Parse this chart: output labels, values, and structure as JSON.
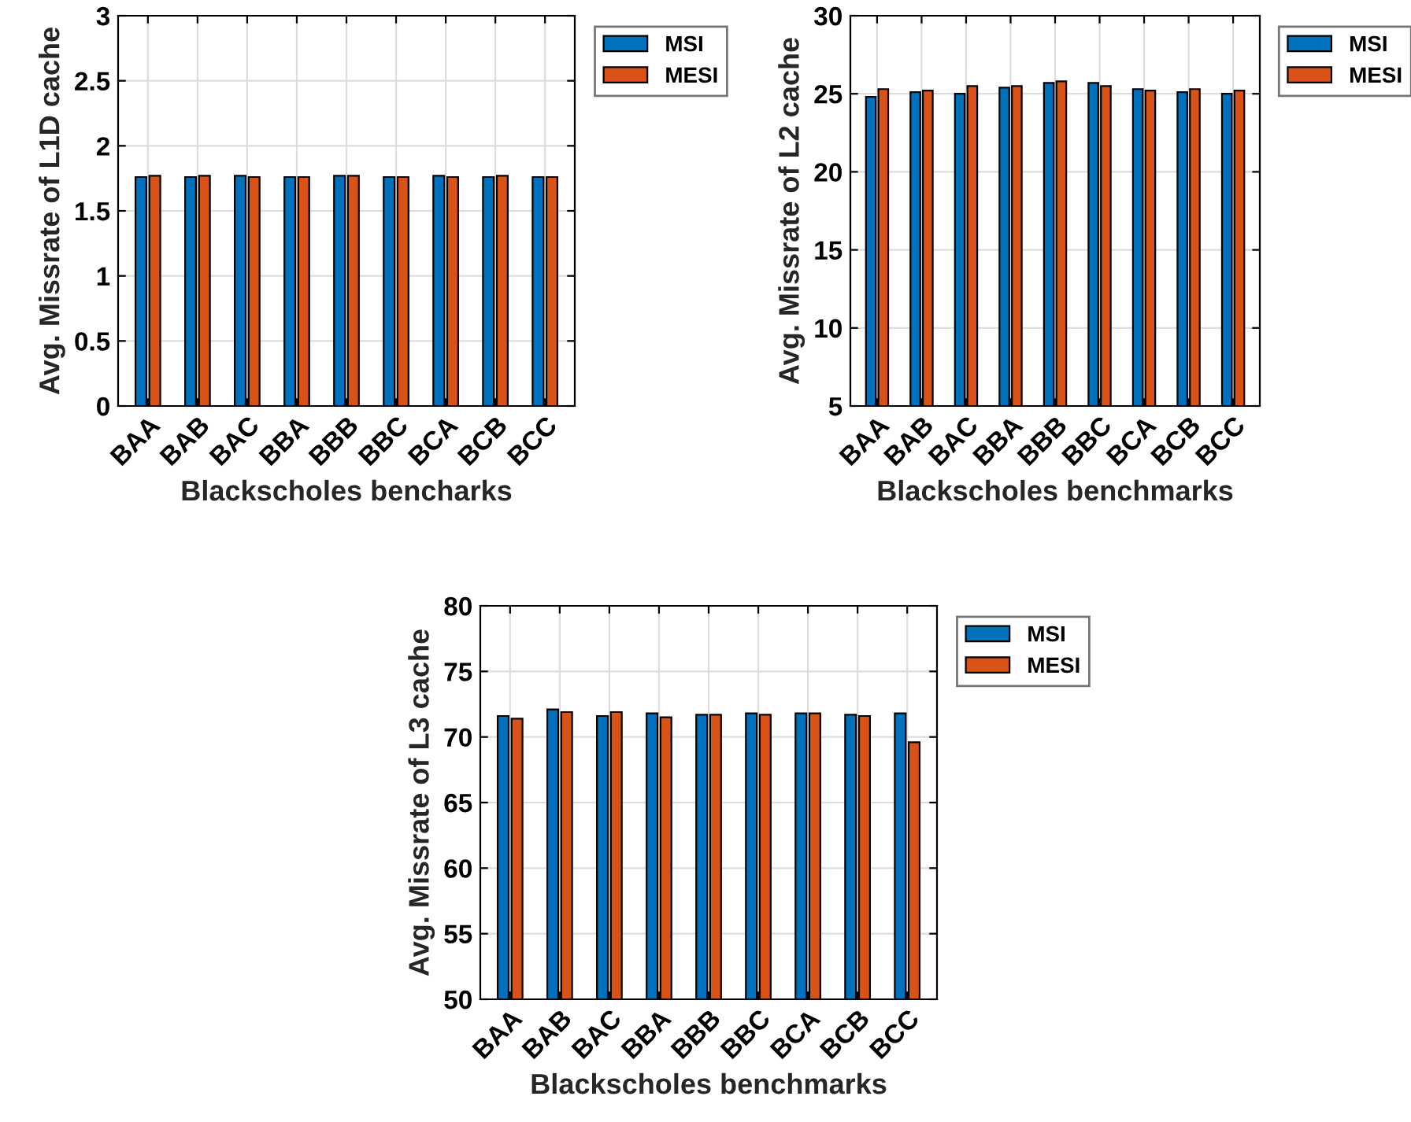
{
  "chart_data": [
    {
      "type": "bar",
      "categories": [
        "BAA",
        "BAB",
        "BAC",
        "BBA",
        "BBB",
        "BBC",
        "BCA",
        "BCB",
        "BCC"
      ],
      "xlabel": "Blackscholes bencharks",
      "ylabel": "Avg. Missrate of L1D cache",
      "ylim": [
        0,
        3
      ],
      "yticks": [
        0,
        0.5,
        1,
        1.5,
        2,
        2.5,
        3
      ],
      "grid": true,
      "legend": "top right",
      "series": [
        {
          "name": "MSI",
          "color": "#0072bd",
          "values": [
            1.76,
            1.76,
            1.77,
            1.76,
            1.77,
            1.76,
            1.77,
            1.76,
            1.76
          ]
        },
        {
          "name": "MESI",
          "color": "#d95319",
          "values": [
            1.77,
            1.77,
            1.76,
            1.76,
            1.77,
            1.76,
            1.76,
            1.77,
            1.76
          ]
        }
      ]
    },
    {
      "type": "bar",
      "categories": [
        "BAA",
        "BAB",
        "BAC",
        "BBA",
        "BBB",
        "BBC",
        "BCA",
        "BCB",
        "BCC"
      ],
      "xlabel": "Blackscholes benchmarks",
      "ylabel": "Avg. Missrate of L2 cache",
      "ylim": [
        5,
        30
      ],
      "yticks": [
        5,
        10,
        15,
        20,
        25,
        30
      ],
      "grid": true,
      "legend": "top right",
      "series": [
        {
          "name": "MSI",
          "color": "#0072bd",
          "values": [
            24.8,
            25.1,
            25.0,
            25.4,
            25.7,
            25.7,
            25.3,
            25.1,
            25.0
          ]
        },
        {
          "name": "MESI",
          "color": "#d95319",
          "values": [
            25.3,
            25.2,
            25.5,
            25.5,
            25.8,
            25.5,
            25.2,
            25.3,
            25.2
          ]
        }
      ]
    },
    {
      "type": "bar",
      "categories": [
        "BAA",
        "BAB",
        "BAC",
        "BBA",
        "BBB",
        "BBC",
        "BCA",
        "BCB",
        "BCC"
      ],
      "xlabel": "Blackscholes benchmarks",
      "ylabel": "Avg. Missrate of L3 cache",
      "ylim": [
        50,
        80
      ],
      "yticks": [
        50,
        55,
        60,
        65,
        70,
        75,
        80
      ],
      "grid": true,
      "legend": "top right",
      "series": [
        {
          "name": "MSI",
          "color": "#0072bd",
          "values": [
            71.6,
            72.1,
            71.6,
            71.8,
            71.7,
            71.8,
            71.8,
            71.7,
            71.8
          ]
        },
        {
          "name": "MESI",
          "color": "#d95319",
          "values": [
            71.4,
            71.9,
            71.9,
            71.5,
            71.7,
            71.7,
            71.8,
            71.6,
            69.6
          ]
        }
      ]
    }
  ]
}
